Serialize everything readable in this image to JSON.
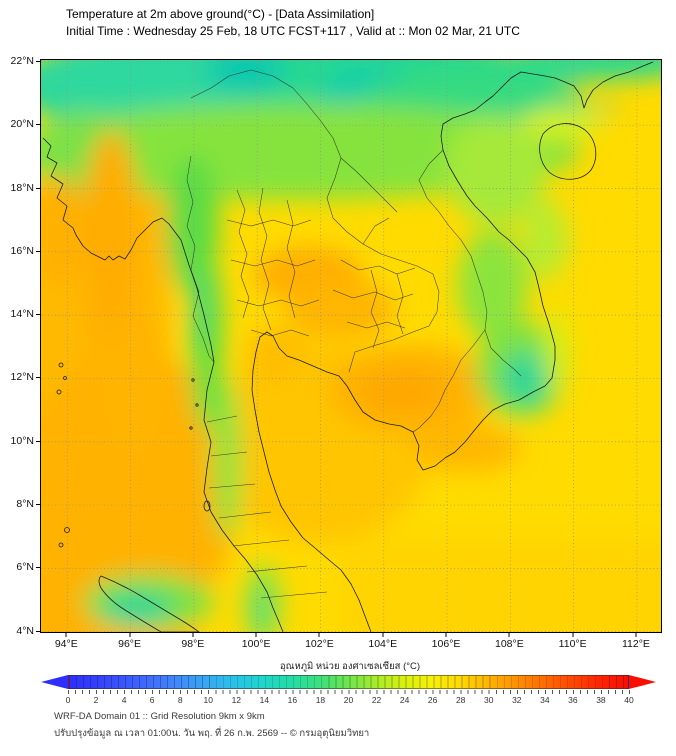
{
  "header": {
    "title": "Temperature at 2m above ground(°C) - [Data Assimilation]",
    "subtitle": "Initial Time : Wednesday 25 Feb, 18 UTC FCST+117 , Valid at :: Mon 02 Mar, 21 UTC"
  },
  "footer": {
    "line1": "WRF-DA Domain 01 :: Grid Resolution 9km x 9km",
    "line2": "ปรับปรุงข้อมูล ณ เวลา 01:00น. วัน พฤ. ที่ 26 ก.พ. 2569 -- © กรมอุตุนิยมวิทยา"
  },
  "colorbar": {
    "label": "อุณหภูมิ หน่วย องศาเซลเซียส (°C)",
    "min": 0,
    "max": 40,
    "ticks": [
      0,
      2,
      4,
      6,
      8,
      10,
      12,
      14,
      16,
      18,
      20,
      22,
      24,
      26,
      28,
      30,
      32,
      34,
      36,
      38,
      40
    ],
    "segment_step_degC": 0.5,
    "stops": [
      {
        "value": 0,
        "color": "#2e2eff"
      },
      {
        "value": 2,
        "color": "#3340ff"
      },
      {
        "value": 4,
        "color": "#3a57ff"
      },
      {
        "value": 6,
        "color": "#3f70ff"
      },
      {
        "value": 8,
        "color": "#3f8dfd"
      },
      {
        "value": 10,
        "color": "#35aaf4"
      },
      {
        "value": 12,
        "color": "#27c4e5"
      },
      {
        "value": 14,
        "color": "#1fd6c9"
      },
      {
        "value": 16,
        "color": "#23dca4"
      },
      {
        "value": 18,
        "color": "#3ce07c"
      },
      {
        "value": 20,
        "color": "#6fe64c"
      },
      {
        "value": 22,
        "color": "#a7ec28"
      },
      {
        "value": 24,
        "color": "#d8f010"
      },
      {
        "value": 26,
        "color": "#f8ef06"
      },
      {
        "value": 28,
        "color": "#ffd800"
      },
      {
        "value": 30,
        "color": "#ffb400"
      },
      {
        "value": 32,
        "color": "#ff9000"
      },
      {
        "value": 34,
        "color": "#ff6c00"
      },
      {
        "value": 36,
        "color": "#ff4700"
      },
      {
        "value": 38,
        "color": "#ff2400"
      },
      {
        "value": 40,
        "color": "#fb0d00"
      }
    ]
  },
  "chart_data": {
    "type": "heatmap",
    "title": "Temperature at 2m above ground(°C) - [Data Assimilation]",
    "subtitle": "Initial Time : Wednesday 25 Feb, 18 UTC FCST+117 , Valid at :: Mon 02 Mar, 21 UTC",
    "units": "°C",
    "grid": true,
    "xlim": [
      93.17,
      112.76
    ],
    "ylim": [
      3.99,
      22.06
    ],
    "x_ticks": [
      {
        "lon": 94,
        "label": "94°E"
      },
      {
        "lon": 96,
        "label": "96°E"
      },
      {
        "lon": 98,
        "label": "98°E"
      },
      {
        "lon": 100,
        "label": "100°E"
      },
      {
        "lon": 102,
        "label": "102°E"
      },
      {
        "lon": 104,
        "label": "104°E"
      },
      {
        "lon": 106,
        "label": "106°E"
      },
      {
        "lon": 108,
        "label": "108°E"
      },
      {
        "lon": 110,
        "label": "110°E"
      },
      {
        "lon": 112,
        "label": "112°E"
      }
    ],
    "y_ticks": [
      {
        "lat": 22,
        "label": "22°N"
      },
      {
        "lat": 20,
        "label": "20°N"
      },
      {
        "lat": 18,
        "label": "18°N"
      },
      {
        "lat": 16,
        "label": "16°N"
      },
      {
        "lat": 14,
        "label": "14°N"
      },
      {
        "lat": 12,
        "label": "12°N"
      },
      {
        "lat": 10,
        "label": "10°N"
      },
      {
        "lat": 8,
        "label": "8°N"
      },
      {
        "lat": 6,
        "label": "6°N"
      },
      {
        "lat": 4,
        "label": "4°N"
      }
    ],
    "colorbar_label": "อุณหภูมิ หน่วย องศาเซลเซียส (°C)",
    "colorbar_range": [
      0,
      40
    ],
    "estimated_field_degC": {
      "lons": [
        94,
        96,
        98,
        100,
        102,
        104,
        106,
        108,
        110,
        112
      ],
      "lats": [
        21,
        19,
        17,
        15,
        13,
        11,
        9,
        7,
        5
      ],
      "values": [
        [
          19,
          20,
          17,
          15,
          16,
          17,
          19,
          23,
          21,
          22
        ],
        [
          26,
          23,
          25,
          19,
          17,
          18,
          22,
          25,
          26,
          25
        ],
        [
          27,
          29,
          23,
          24,
          20,
          22,
          25,
          26,
          26,
          26
        ],
        [
          28,
          26,
          21,
          26,
          26,
          25,
          23,
          22,
          26,
          26
        ],
        [
          28,
          27,
          23,
          27,
          28,
          28,
          26,
          20,
          26,
          26
        ],
        [
          29,
          28,
          26,
          27,
          28,
          29,
          27,
          24,
          25,
          26
        ],
        [
          29,
          28,
          27,
          26,
          28,
          28,
          27,
          26,
          26,
          26
        ],
        [
          29,
          29,
          28,
          27,
          26,
          27,
          27,
          26,
          26,
          26
        ],
        [
          29,
          28,
          22,
          26,
          25,
          26,
          26,
          26,
          26,
          26
        ]
      ]
    },
    "notable_features": [
      {
        "feature": "cool teal band over northern highlands (N Thailand / Laos / N Vietnam / S China)",
        "approx_location": "19–22°N across map",
        "temp_c": "14–20"
      },
      {
        "feature": "coolest pockets",
        "approx_location": "100–103°E near 21.5°N",
        "temp_c": "14–16"
      },
      {
        "feature": "warm orange band, central Myanmar lowlands",
        "approx_location": "95–96°E, 14–20°N",
        "temp_c": "28–30"
      },
      {
        "feature": "green ridge along Thai–Myanmar border range",
        "approx_location": "98–99°E, 10–17°N",
        "temp_c": "20–23"
      },
      {
        "feature": "cool spot, southern Vietnam highlands",
        "approx_location": "~108.5°E, 12°N",
        "temp_c": "17–19"
      },
      {
        "feature": "warm Andaman Sea and Cambodia lowlands",
        "approx_location": "west sea & 103–106°E, 10–13°N",
        "temp_c": "28–30"
      },
      {
        "feature": "cool highlands of northern Sumatra",
        "approx_location": "~97°E, 4.5°N",
        "temp_c": "18–22"
      },
      {
        "feature": "background sea / lowland temperature",
        "approx_location": "most of domain",
        "temp_c": "26–28"
      }
    ]
  }
}
